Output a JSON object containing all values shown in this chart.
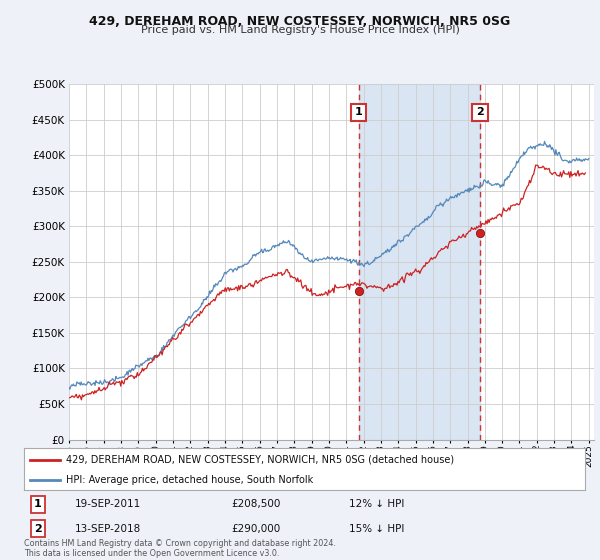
{
  "title1": "429, DEREHAM ROAD, NEW COSTESSEY, NORWICH, NR5 0SG",
  "title2": "Price paid vs. HM Land Registry's House Price Index (HPI)",
  "ylim": [
    0,
    500000
  ],
  "yticks": [
    0,
    50000,
    100000,
    150000,
    200000,
    250000,
    300000,
    350000,
    400000,
    450000,
    500000
  ],
  "background_color": "#eef2f8",
  "plot_bg": "#ffffff",
  "grid_color": "#cccccc",
  "hpi_color": "#5588bb",
  "price_color": "#cc2222",
  "dashed_color": "#cc3333",
  "marker1_date": 2011.72,
  "marker1_price": 208500,
  "marker1_text": "19-SEP-2011",
  "marker1_pct": "12% ↓ HPI",
  "marker2_date": 2018.71,
  "marker2_price": 290000,
  "marker2_text": "13-SEP-2018",
  "marker2_pct": "15% ↓ HPI",
  "legend_entry1": "429, DEREHAM ROAD, NEW COSTESSEY, NORWICH, NR5 0SG (detached house)",
  "legend_entry2": "HPI: Average price, detached house, South Norfolk",
  "footnote": "Contains HM Land Registry data © Crown copyright and database right 2024.\nThis data is licensed under the Open Government Licence v3.0.",
  "shade_start": 2011.72,
  "shade_end": 2018.71,
  "xmin": 1995,
  "xmax": 2025.3
}
